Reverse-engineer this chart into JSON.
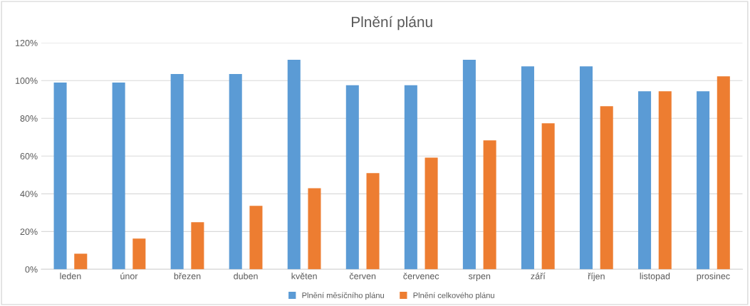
{
  "chart_data": {
    "type": "bar",
    "title": "Plnění plánu",
    "categories": [
      "leden",
      "únor",
      "březen",
      "duben",
      "květen",
      "červen",
      "červenec",
      "srpen",
      "září",
      "říjen",
      "listopad",
      "prosinec"
    ],
    "series": [
      {
        "name": "Plnění měsíčního plánu",
        "color": "#5b9bd5",
        "values": [
          99,
          99,
          103.5,
          103.5,
          111,
          97.5,
          97.5,
          111,
          107.5,
          107.5,
          94.3,
          94.3
        ]
      },
      {
        "name": "Plnění celkového plánu",
        "color": "#ed7d31",
        "values": [
          8.3,
          16.3,
          24.9,
          33.6,
          43,
          51,
          59.2,
          68.3,
          77.4,
          86.4,
          94.3,
          102.3
        ]
      }
    ],
    "ylim": [
      0,
      120
    ],
    "yticks": [
      {
        "value": 0,
        "label": "0%"
      },
      {
        "value": 20,
        "label": "20%"
      },
      {
        "value": 40,
        "label": "40%"
      },
      {
        "value": 60,
        "label": "60%"
      },
      {
        "value": 80,
        "label": "80%"
      },
      {
        "value": 100,
        "label": "100%"
      },
      {
        "value": 120,
        "label": "120%"
      }
    ],
    "grid": "y",
    "legend": "bottom"
  }
}
